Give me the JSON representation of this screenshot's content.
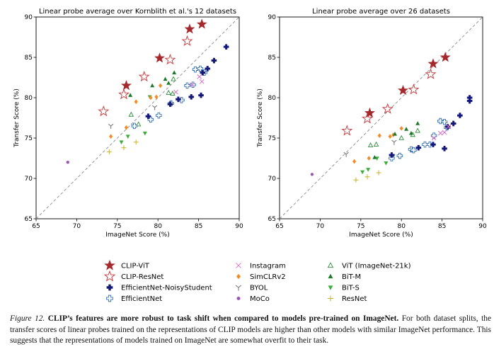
{
  "chart_data": [
    {
      "type": "scatter",
      "title": "Linear probe average over Kornblith et al.'s 12 datasets",
      "xlabel": "ImageNet Score (%)",
      "ylabel": "Transfer Score (%)",
      "xlim": [
        65,
        90
      ],
      "ylim": [
        65,
        90
      ],
      "xticks": [
        "65",
        "70",
        "75",
        "80",
        "85",
        "90"
      ],
      "yticks": [
        "65",
        "70",
        "75",
        "80",
        "85",
        "90"
      ],
      "diagonal": true,
      "series": [
        {
          "name": "CLIP-ViT",
          "points": [
            [
              76.1,
              81.5
            ],
            [
              80.2,
              84.9
            ],
            [
              83.9,
              88.5
            ],
            [
              85.4,
              89.1
            ]
          ]
        },
        {
          "name": "CLIP-ResNet",
          "points": [
            [
              73.3,
              78.3
            ],
            [
              75.8,
              80.4
            ],
            [
              78.3,
              82.6
            ],
            [
              81.5,
              84.7
            ],
            [
              83.6,
              87.0
            ]
          ]
        },
        {
          "name": "EfficientNet-NoisyStudent",
          "points": [
            [
              78.8,
              77.7
            ],
            [
              81.5,
              79.2
            ],
            [
              82.5,
              79.8
            ],
            [
              84.1,
              80.1
            ],
            [
              85.3,
              80.3
            ],
            [
              85.5,
              83.1
            ],
            [
              86.1,
              83.6
            ],
            [
              86.9,
              84.6
            ],
            [
              88.4,
              86.3
            ]
          ]
        },
        {
          "name": "EfficientNet",
          "points": [
            [
              77.1,
              76.5
            ],
            [
              79.1,
              77.3
            ],
            [
              80.1,
              77.8
            ],
            [
              81.6,
              79.3
            ],
            [
              82.9,
              79.7
            ],
            [
              83.6,
              81.5
            ],
            [
              84.3,
              81.6
            ],
            [
              84.6,
              83.5
            ],
            [
              85.2,
              83.6
            ],
            [
              85.7,
              83.1
            ]
          ]
        },
        {
          "name": "Instagram",
          "points": [
            [
              82.2,
              80.7
            ],
            [
              84.2,
              81.6
            ],
            [
              85.1,
              82.6
            ],
            [
              85.4,
              82.0
            ]
          ]
        },
        {
          "name": "SimCLRv2",
          "points": [
            [
              74.2,
              75.2
            ],
            [
              76.1,
              76.3
            ],
            [
              77.3,
              79.5
            ],
            [
              79.1,
              80.0
            ],
            [
              79.8,
              80.1
            ],
            [
              80.3,
              81.5
            ]
          ]
        },
        {
          "name": "BYOL",
          "points": [
            [
              74.2,
              76.5
            ],
            [
              79.6,
              78.8
            ]
          ]
        },
        {
          "name": "MoCo",
          "points": [
            [
              68.9,
              72.0
            ]
          ]
        },
        {
          "name": "ViT (ImageNet-21k)",
          "points": [
            [
              76.7,
              77.9
            ],
            [
              77.6,
              76.7
            ],
            [
              81.3,
              80.6
            ],
            [
              81.8,
              80.5
            ],
            [
              81.9,
              82.3
            ]
          ]
        },
        {
          "name": "BiT-M",
          "points": [
            [
              76.6,
              80.3
            ],
            [
              79.3,
              81.5
            ],
            [
              80.9,
              82.3
            ],
            [
              81.3,
              81.8
            ],
            [
              82.0,
              83.1
            ]
          ]
        },
        {
          "name": "BiT-S",
          "points": [
            [
              75.5,
              74.5
            ],
            [
              76.3,
              75.2
            ],
            [
              77.1,
              76.4
            ],
            [
              78.4,
              75.6
            ],
            [
              79.0,
              80.1
            ]
          ]
        },
        {
          "name": "ResNet",
          "points": [
            [
              74.0,
              73.3
            ],
            [
              75.8,
              73.8
            ],
            [
              77.3,
              74.5
            ]
          ]
        }
      ]
    },
    {
      "type": "scatter",
      "title": "Linear probe average over 26 datasets",
      "xlabel": "ImageNet Score (%)",
      "ylabel": "Transfer Score (%)",
      "xlim": [
        65,
        90
      ],
      "ylim": [
        65,
        90
      ],
      "xticks": [
        "65",
        "70",
        "75",
        "80",
        "85",
        "90"
      ],
      "yticks": [
        "65",
        "70",
        "75",
        "80",
        "85",
        "90"
      ],
      "diagonal": true,
      "series": [
        {
          "name": "CLIP-ViT",
          "points": [
            [
              76.1,
              78.1
            ],
            [
              80.2,
              80.9
            ],
            [
              83.9,
              84.2
            ],
            [
              85.4,
              85.0
            ]
          ]
        },
        {
          "name": "CLIP-ResNet",
          "points": [
            [
              73.3,
              75.9
            ],
            [
              75.8,
              77.4
            ],
            [
              78.3,
              78.6
            ],
            [
              81.5,
              81.0
            ],
            [
              83.6,
              82.9
            ]
          ]
        },
        {
          "name": "EfficientNet-NoisyStudent",
          "points": [
            [
              78.8,
              72.9
            ],
            [
              82.1,
              73.8
            ],
            [
              83.9,
              74.2
            ],
            [
              85.3,
              73.7
            ],
            [
              85.7,
              76.4
            ],
            [
              86.4,
              76.8
            ],
            [
              87.2,
              77.8
            ],
            [
              88.4,
              79.6
            ],
            [
              88.4,
              80.0
            ]
          ]
        },
        {
          "name": "EfficientNet",
          "points": [
            [
              78.8,
              72.5
            ],
            [
              79.8,
              72.8
            ],
            [
              81.2,
              73.6
            ],
            [
              81.5,
              73.5
            ],
            [
              82.9,
              74.2
            ],
            [
              83.5,
              74.2
            ],
            [
              84.0,
              75.3
            ],
            [
              84.8,
              77.1
            ],
            [
              85.3,
              77.0
            ],
            [
              85.6,
              76.3
            ]
          ]
        },
        {
          "name": "Instagram",
          "points": [
            [
              84.0,
              75.0
            ],
            [
              84.8,
              75.6
            ],
            [
              85.3,
              75.7
            ],
            [
              85.8,
              76.4
            ]
          ]
        },
        {
          "name": "SimCLRv2",
          "points": [
            [
              74.2,
              72.1
            ],
            [
              76.0,
              72.5
            ],
            [
              77.3,
              75.3
            ],
            [
              78.6,
              75.2
            ],
            [
              79.0,
              75.4
            ],
            [
              80.0,
              76.2
            ]
          ]
        },
        {
          "name": "BYOL",
          "points": [
            [
              73.2,
              73.0
            ],
            [
              79.1,
              74.5
            ]
          ]
        },
        {
          "name": "MoCo",
          "points": [
            [
              69.0,
              70.5
            ]
          ]
        },
        {
          "name": "ViT (ImageNet-21k)",
          "points": [
            [
              76.2,
              74.1
            ],
            [
              76.9,
              74.2
            ],
            [
              80.0,
              75.0
            ],
            [
              81.4,
              75.4
            ],
            [
              82.0,
              75.9
            ]
          ]
        },
        {
          "name": "BiT-M",
          "points": [
            [
              76.7,
              72.6
            ],
            [
              79.2,
              75.5
            ],
            [
              80.6,
              76.1
            ],
            [
              81.2,
              75.6
            ],
            [
              82.0,
              76.8
            ]
          ]
        },
        {
          "name": "BiT-S",
          "points": [
            [
              75.2,
              70.8
            ],
            [
              75.9,
              71.1
            ],
            [
              77.0,
              72.5
            ],
            [
              78.1,
              71.9
            ],
            [
              79.0,
              72.8
            ]
          ]
        },
        {
          "name": "ResNet",
          "points": [
            [
              74.4,
              69.8
            ],
            [
              75.8,
              70.2
            ],
            [
              77.2,
              70.7
            ]
          ]
        }
      ]
    }
  ],
  "legend": [
    {
      "name": "CLIP-ViT",
      "marker": "star-filled",
      "color": "#a5282c"
    },
    {
      "name": "CLIP-ResNet",
      "marker": "star-open",
      "color": "#c84347"
    },
    {
      "name": "EfficientNet-NoisyStudent",
      "marker": "plus-filled",
      "color": "#141979"
    },
    {
      "name": "EfficientNet",
      "marker": "plus-open",
      "color": "#2f6fb5"
    },
    {
      "name": "Instagram",
      "marker": "x",
      "color": "#d570c6"
    },
    {
      "name": "SimCLRv2",
      "marker": "diamond",
      "color": "#f38b26"
    },
    {
      "name": "BYOL",
      "marker": "tri-y",
      "color": "#7a7a7a"
    },
    {
      "name": "MoCo",
      "marker": "circle",
      "color": "#9b59b6"
    },
    {
      "name": "ViT (ImageNet-21k)",
      "marker": "tri-up-open",
      "color": "#2e8b3a"
    },
    {
      "name": "BiT-M",
      "marker": "tri-up",
      "color": "#1e7a2a"
    },
    {
      "name": "BiT-S",
      "marker": "tri-down",
      "color": "#3cae3c"
    },
    {
      "name": "ResNet",
      "marker": "plus-thin",
      "color": "#c9b22e"
    }
  ],
  "caption": {
    "figure_label": "Figure 12.",
    "bold_text": "CLIP’s features are more robust to task shift when compared to models pre-trained on ImageNet.",
    "body_text": " For both dataset splits, the transfer scores of linear probes trained on the representations of CLIP models are higher than other models with similar ImageNet performance. This suggests that the representations of models trained on ImageNet are somewhat overfit to their task."
  }
}
